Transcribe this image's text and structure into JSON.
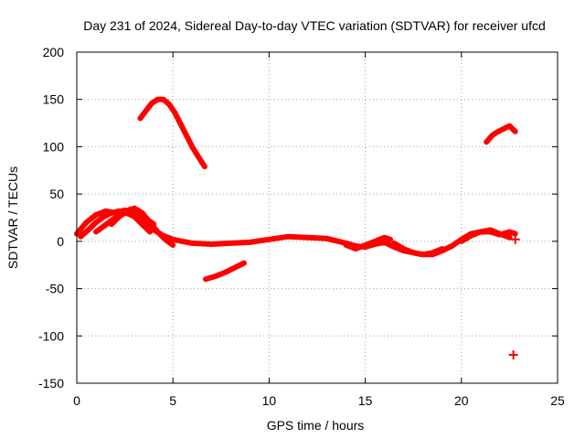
{
  "chart_data": {
    "type": "scatter",
    "title": "Day 231 of 2024, Sidereal Day-to-day VTEC variation (SDTVAR) for receiver ufcd",
    "xlabel": "GPS time / hours",
    "ylabel": "SDTVAR / TECUs",
    "xlim": [
      0,
      25
    ],
    "ylim": [
      -150,
      200
    ],
    "x_ticks": [
      0,
      5,
      10,
      15,
      20,
      25
    ],
    "y_ticks": [
      -150,
      -100,
      -50,
      0,
      50,
      100,
      150,
      200
    ],
    "grid": true,
    "marker": "plus",
    "color": "#ff0000",
    "series": [
      {
        "name": "arc-high-peak",
        "x": [
          3.3,
          3.6,
          3.9,
          4.2,
          4.5,
          4.8,
          5.1,
          5.4,
          5.7,
          6.0,
          6.3,
          6.65
        ],
        "y": [
          130,
          138,
          146,
          150,
          150,
          145,
          136,
          124,
          112,
          100,
          90,
          79
        ]
      },
      {
        "name": "arc-late-high",
        "x": [
          21.3,
          21.6,
          21.9,
          22.2,
          22.5,
          22.8
        ],
        "y": [
          105,
          112,
          116,
          119,
          122,
          116
        ]
      },
      {
        "name": "arc-negative",
        "x": [
          6.7,
          7.2,
          7.7,
          8.2,
          8.7
        ],
        "y": [
          -40,
          -37,
          -33,
          -28,
          -23
        ]
      },
      {
        "name": "arc-main-low",
        "x": [
          0,
          0.5,
          1.0,
          1.5,
          2.0,
          2.5,
          3.0,
          3.5,
          4.0,
          4.5,
          5.0,
          5.5,
          6.0,
          7.0,
          8.0,
          9.0,
          10.0,
          11.0,
          12.0,
          13.0,
          14.0,
          14.5,
          15.0,
          15.5,
          16.0,
          16.5,
          17.0,
          17.5,
          18.0,
          18.5,
          19.0,
          19.5,
          20.0,
          20.5,
          21.0,
          21.5,
          22.0,
          22.5,
          22.8
        ],
        "y": [
          8,
          20,
          28,
          32,
          30,
          33,
          28,
          20,
          12,
          6,
          2,
          0,
          -2,
          -3,
          -2,
          -1,
          2,
          5,
          4,
          3,
          -2,
          -5,
          -6,
          -3,
          -1,
          -6,
          -10,
          -12,
          -14,
          -14,
          -10,
          -5,
          2,
          8,
          10,
          10,
          7,
          10,
          8
        ]
      },
      {
        "name": "arc-early-1",
        "x": [
          0.2,
          0.6,
          1.0,
          1.4,
          1.8,
          2.2
        ],
        "y": [
          5,
          12,
          20,
          26,
          30,
          32
        ]
      },
      {
        "name": "arc-early-2",
        "x": [
          1.0,
          1.4,
          1.8,
          2.2,
          2.6,
          3.0,
          3.4,
          3.8
        ],
        "y": [
          10,
          16,
          22,
          28,
          30,
          26,
          18,
          10
        ]
      },
      {
        "name": "arc-early-3",
        "x": [
          1.8,
          2.2,
          2.6,
          3.0,
          3.4,
          3.8,
          4.2,
          4.6,
          5.0
        ],
        "y": [
          18,
          26,
          32,
          35,
          30,
          20,
          10,
          2,
          -4
        ]
      },
      {
        "name": "arc-early-4",
        "x": [
          2.4,
          2.8,
          3.2,
          3.6,
          4.0
        ],
        "y": [
          30,
          34,
          30,
          24,
          18
        ]
      },
      {
        "name": "arc-mid-1",
        "x": [
          14.0,
          14.5,
          15.0,
          15.5,
          16.0,
          16.3
        ],
        "y": [
          -4,
          -8,
          -4,
          0,
          4,
          2
        ]
      },
      {
        "name": "arc-mid-2",
        "x": [
          16.5,
          17.0,
          17.5,
          18.0,
          18.5,
          19.0
        ],
        "y": [
          -2,
          -8,
          -12,
          -14,
          -12,
          -8
        ]
      },
      {
        "name": "arc-late-low",
        "x": [
          20.0,
          20.5,
          21.0,
          21.5,
          22.0,
          22.5
        ],
        "y": [
          0,
          6,
          10,
          12,
          8,
          4
        ]
      }
    ],
    "points": [
      {
        "name": "point-outlier-low",
        "x": 22.7,
        "y": -120
      },
      {
        "name": "point-late-zero",
        "x": 22.8,
        "y": 2
      }
    ]
  }
}
